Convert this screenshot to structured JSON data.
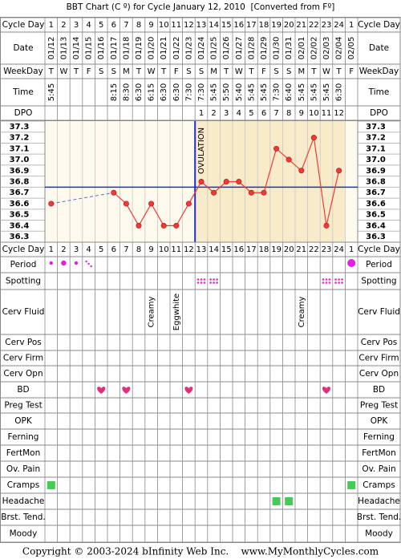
{
  "title": "BBT Chart (C º) for Cycle January 12, 2010  [Converted from Fº]",
  "footer": "Copyright © 2003-2024 bInfinity Web Inc.    www.MyMonthlyCycles.com",
  "labels": {
    "cycle_day": "Cycle Day",
    "date": "Date",
    "weekday": "WeekDay",
    "time": "Time",
    "dpo": "DPO"
  },
  "rows": [
    "Period",
    "Spotting",
    "Cerv Fluid",
    "Cerv Pos",
    "Cerv Firm",
    "Cerv Opn",
    "BD",
    "Preg Test",
    "OPK",
    "Ferning",
    "FertMon",
    "Ov. Pain",
    "Cramps",
    "Headache",
    "Brst. Tend.",
    "Moody"
  ],
  "cerv_fluid": [
    null,
    null,
    null,
    null,
    null,
    null,
    null,
    null,
    "Creamy",
    null,
    "Eggwhite",
    null,
    null,
    null,
    null,
    null,
    null,
    null,
    null,
    null,
    "Creamy",
    null,
    null,
    null,
    null
  ],
  "chart_data": {
    "type": "line",
    "categories": [
      1,
      2,
      3,
      4,
      5,
      6,
      7,
      8,
      9,
      10,
      11,
      12,
      13,
      14,
      15,
      16,
      17,
      18,
      19,
      20,
      21,
      22,
      23,
      24,
      1
    ],
    "dates": [
      "01/12",
      "01/13",
      "01/14",
      "01/15",
      "01/16",
      "01/17",
      "01/18",
      "01/19",
      "01/20",
      "01/21",
      "01/22",
      "01/23",
      "01/24",
      "01/25",
      "01/26",
      "01/27",
      "01/28",
      "01/29",
      "01/30",
      "01/31",
      "02/01",
      "02/02",
      "02/03",
      "02/04",
      "02/05"
    ],
    "weekdays": [
      "T",
      "W",
      "T",
      "F",
      "S",
      "S",
      "M",
      "T",
      "W",
      "T",
      "F",
      "S",
      "S",
      "M",
      "T",
      "W",
      "T",
      "F",
      "S",
      "S",
      "M",
      "T",
      "W",
      "T",
      "F"
    ],
    "times": [
      "5:45",
      null,
      null,
      null,
      null,
      "8:15",
      "8:30",
      "6:30",
      "6:15",
      "6:30",
      "6:30",
      "7:30",
      "7:30",
      "5:45",
      "5:50",
      "5:40",
      "5:45",
      "5:45",
      "7:30",
      "6:40",
      "5:45",
      "5:45",
      "5:45",
      "6:30",
      null
    ],
    "dpo": [
      null,
      null,
      null,
      null,
      null,
      null,
      null,
      null,
      null,
      null,
      null,
      null,
      1,
      2,
      3,
      4,
      5,
      6,
      7,
      8,
      9,
      10,
      11,
      12,
      null
    ],
    "values": [
      36.6,
      null,
      null,
      null,
      null,
      36.7,
      36.6,
      36.4,
      36.6,
      36.4,
      36.4,
      36.6,
      36.8,
      36.7,
      36.8,
      36.8,
      36.7,
      36.7,
      37.1,
      37.0,
      36.9,
      37.2,
      36.4,
      36.9,
      null
    ],
    "color": "#f03a3a",
    "coverline": 36.75,
    "coverline_color": "#1f2fd0",
    "annotation": "OVULATION",
    "ylim": [
      36.25,
      37.35
    ],
    "yticks": [
      36.3,
      36.4,
      36.5,
      36.6,
      36.7,
      36.8,
      36.9,
      {
        "value": 37,
        "label": "37.0"
      },
      37.1,
      37.2,
      37.3
    ]
  }
}
